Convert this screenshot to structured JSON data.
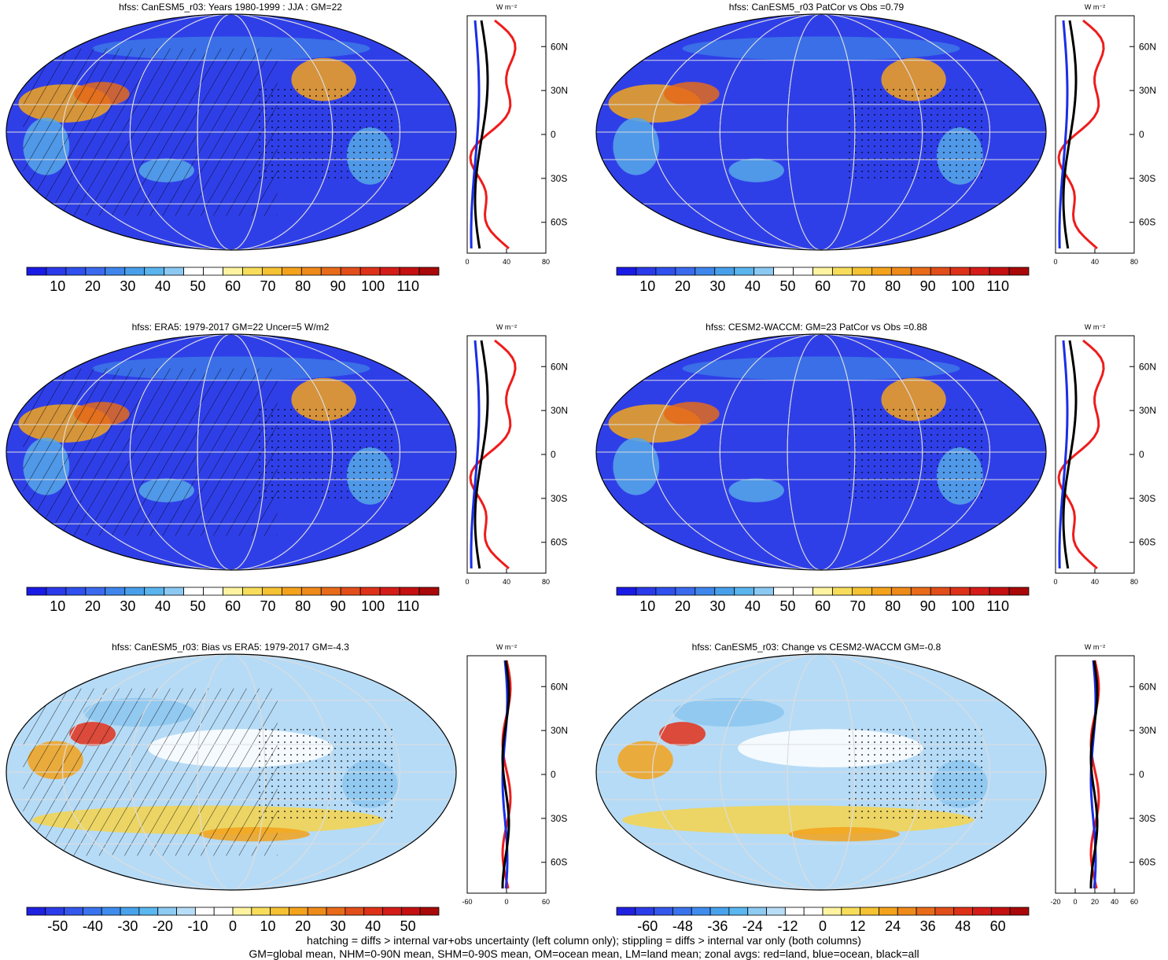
{
  "colors": {
    "ocean_base": "#2f3fe8",
    "ocean_mid": "#3c78e6",
    "land_light": "#56a8e8",
    "warm": "#f3a21c",
    "hot": "#e2301a",
    "zonal_land": "#ee1c1c",
    "zonal_ocean": "#1a2ee6",
    "zonal_all": "#000000"
  },
  "units_label": "W m⁻²",
  "lat_labels": [
    "60N",
    "30N",
    "0",
    "30S",
    "60S"
  ],
  "panels": [
    {
      "id": "p1",
      "title": "hfss: CanESM5_r03: Years 1980-1999 : JJA : GM=22",
      "type": "absolute",
      "colorbar_labels": [
        "10",
        "20",
        "30",
        "40",
        "50",
        "60",
        "70",
        "80",
        "90",
        "100",
        "110"
      ],
      "zonal_ticks": [
        "0",
        "40",
        "80"
      ],
      "hatching": true
    },
    {
      "id": "p2",
      "title": "hfss: CanESM5_r03 PatCor vs Obs =0.79",
      "type": "absolute",
      "colorbar_labels": [
        "10",
        "20",
        "30",
        "40",
        "50",
        "60",
        "70",
        "80",
        "90",
        "100",
        "110"
      ],
      "zonal_ticks": [
        "0",
        "40",
        "80"
      ],
      "hatching": false
    },
    {
      "id": "p3",
      "title": "hfss: ERA5: 1979-2017 GM=22 Uncer=5 W/m2",
      "type": "absolute",
      "colorbar_labels": [
        "10",
        "20",
        "30",
        "40",
        "50",
        "60",
        "70",
        "80",
        "90",
        "100",
        "110"
      ],
      "zonal_ticks": [
        "0",
        "40",
        "80"
      ],
      "hatching": true
    },
    {
      "id": "p4",
      "title": "hfss: CESM2-WACCM: GM=23 PatCor vs Obs =0.88",
      "type": "absolute",
      "colorbar_labels": [
        "10",
        "20",
        "30",
        "40",
        "50",
        "60",
        "70",
        "80",
        "90",
        "100",
        "110"
      ],
      "zonal_ticks": [
        "0",
        "40",
        "80"
      ],
      "hatching": false
    },
    {
      "id": "p5",
      "title": "hfss: CanESM5_r03: Bias vs ERA5: 1979-2017 GM=-4.3",
      "type": "diff",
      "colorbar_labels": [
        "-50",
        "-40",
        "-30",
        "-20",
        "-10",
        "0",
        "10",
        "20",
        "30",
        "40",
        "50"
      ],
      "zonal_ticks": [
        "-60",
        "0",
        "60"
      ],
      "hatching": true
    },
    {
      "id": "p6",
      "title": "hfss: CanESM5_r03: Change vs CESM2-WACCM GM=-0.8",
      "type": "diff",
      "colorbar_labels": [
        "-60",
        "-48",
        "-36",
        "-24",
        "-12",
        "0",
        "12",
        "24",
        "36",
        "48",
        "60"
      ],
      "zonal_ticks": [
        "-20",
        "0",
        "20",
        "40",
        "60"
      ],
      "hatching": false
    }
  ],
  "footnote": {
    "line1": "hatching = diffs > internal var+obs uncertainty (left column only); stippling = diffs > internal var only (both columns)",
    "line2": "GM=global mean, NHM=0-90N mean, SHM=0-90S mean, OM=ocean mean, LM=land mean; zonal avgs: red=land, blue=ocean, black=all"
  }
}
